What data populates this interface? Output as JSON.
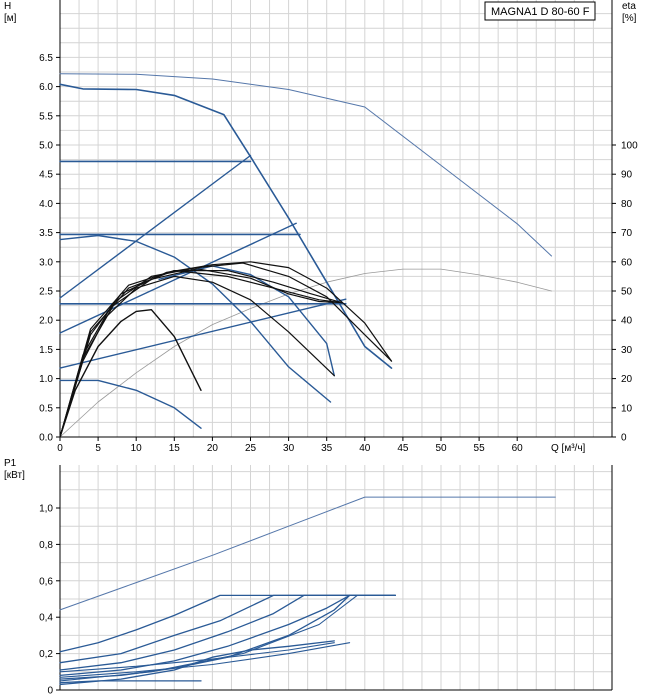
{
  "chart_data": [
    {
      "type": "line",
      "title": "MAGNA1 D 80-60 F",
      "xlabel": "Q [м³/ч]",
      "ylabel_lines": [
        "H",
        "[м]"
      ],
      "y2label_lines": [
        "eta",
        "[%]"
      ],
      "xlim": [
        0,
        70
      ],
      "ylim": [
        0,
        7.5
      ],
      "y2lim": [
        0,
        150
      ],
      "grid": true,
      "x_ticks": [
        0,
        5,
        10,
        15,
        20,
        25,
        30,
        35,
        40,
        45,
        50,
        55,
        60
      ],
      "y_ticks": [
        "0.0",
        "0.5",
        "1.0",
        "1.5",
        "2.0",
        "2.5",
        "3.0",
        "3.5",
        "4.0",
        "4.5",
        "5.0",
        "5.5",
        "6.0",
        "6.5"
      ],
      "y2_ticks": [
        "0",
        "10",
        "20",
        "30",
        "40",
        "50",
        "60",
        "70",
        "80",
        "90",
        "100"
      ],
      "series": [
        {
          "color": "#5577aa",
          "width": 1,
          "points": [
            [
              0,
              6.22
            ],
            [
              10,
              6.21
            ],
            [
              20,
              6.13
            ],
            [
              30,
              5.95
            ],
            [
              40,
              5.65
            ],
            [
              50,
              4.65
            ],
            [
              60,
              3.65
            ],
            [
              64.5,
              3.1
            ]
          ]
        },
        {
          "color": "#999999",
          "width": 0.8,
          "axis": "y2",
          "points": [
            [
              0,
              0
            ],
            [
              5,
              12
            ],
            [
              10,
              22
            ],
            [
              15,
              31
            ],
            [
              20,
              38.5
            ],
            [
              25,
              44
            ],
            [
              30,
              49
            ],
            [
              35,
              53
            ],
            [
              40,
              56
            ],
            [
              45,
              57.5
            ],
            [
              50,
              57.5
            ],
            [
              55,
              55.5
            ],
            [
              60,
              53
            ],
            [
              64.5,
              50
            ]
          ]
        },
        {
          "color": "#2a5a96",
          "width": 1.6,
          "points": [
            [
              0,
              6.04
            ],
            [
              3,
              5.96
            ],
            [
              10,
              5.95
            ],
            [
              15,
              5.85
            ],
            [
              21.5,
              5.52
            ],
            [
              25,
              4.8
            ],
            [
              30,
              3.75
            ],
            [
              35,
              2.65
            ],
            [
              40,
              1.55
            ],
            [
              43.5,
              1.18
            ]
          ]
        },
        {
          "color": "#2a5a96",
          "width": 1.6,
          "points": [
            [
              0,
              4.72
            ],
            [
              25,
              4.72
            ]
          ]
        },
        {
          "color": "#2a5a96",
          "width": 1.6,
          "points": [
            [
              0,
              3.47
            ],
            [
              31.5,
              3.47
            ]
          ]
        },
        {
          "color": "#2a5a96",
          "width": 1.6,
          "points": [
            [
              0,
              2.28
            ],
            [
              37.5,
              2.28
            ]
          ]
        },
        {
          "color": "#2a5a96",
          "width": 1.4,
          "points": [
            [
              0,
              2.38
            ],
            [
              25,
              4.82
            ]
          ]
        },
        {
          "color": "#2a5a96",
          "width": 1.4,
          "points": [
            [
              0,
              1.78
            ],
            [
              31,
              3.66
            ]
          ]
        },
        {
          "color": "#2a5a96",
          "width": 1.4,
          "points": [
            [
              0,
              1.18
            ],
            [
              37.5,
              2.36
            ]
          ]
        },
        {
          "color": "#2a5a96",
          "width": 1.4,
          "points": [
            [
              0,
              3.38
            ],
            [
              5,
              3.45
            ],
            [
              10,
              3.35
            ],
            [
              15,
              3.08
            ],
            [
              20,
              2.62
            ],
            [
              25,
              1.98
            ],
            [
              30,
              1.2
            ],
            [
              35.5,
              0.6
            ]
          ]
        },
        {
          "color": "#2a5a96",
          "width": 1.4,
          "points": [
            [
              0,
              0.97
            ],
            [
              5,
              0.97
            ],
            [
              10,
              0.8
            ],
            [
              15,
              0.5
            ],
            [
              18.5,
              0.15
            ]
          ]
        },
        {
          "color": "#2a5a96",
          "width": 1.4,
          "points": [
            [
              13,
              2.7
            ],
            [
              20,
              2.93
            ],
            [
              25,
              2.78
            ],
            [
              30,
              2.4
            ],
            [
              35,
              1.6
            ],
            [
              36,
              1.05
            ]
          ]
        },
        {
          "color": "#111111",
          "width": 1.4,
          "points": [
            [
              0,
              0
            ],
            [
              2,
              0.8
            ],
            [
              5,
              1.55
            ],
            [
              8,
              1.98
            ],
            [
              10,
              2.15
            ],
            [
              12,
              2.18
            ],
            [
              15,
              1.72
            ],
            [
              18.5,
              0.8
            ]
          ]
        },
        {
          "color": "#111111",
          "width": 1.2,
          "points": [
            [
              0,
              0
            ],
            [
              3,
              1.3
            ],
            [
              6,
              2.05
            ],
            [
              10,
              2.55
            ],
            [
              15,
              2.75
            ],
            [
              20,
              2.65
            ],
            [
              25,
              2.35
            ],
            [
              30,
              1.8
            ],
            [
              36,
              1.05
            ]
          ]
        },
        {
          "color": "#111111",
          "width": 1.2,
          "points": [
            [
              0,
              0
            ],
            [
              3,
              1.35
            ],
            [
              7,
              2.25
            ],
            [
              12,
              2.7
            ],
            [
              18,
              2.88
            ],
            [
              25,
              2.72
            ],
            [
              30,
              2.45
            ],
            [
              34,
              2.32
            ],
            [
              37,
              2.3
            ]
          ]
        },
        {
          "color": "#111111",
          "width": 1.2,
          "points": [
            [
              0,
              0
            ],
            [
              3,
              1.4
            ],
            [
              7,
              2.3
            ],
            [
              12,
              2.75
            ],
            [
              18,
              2.9
            ],
            [
              24,
              2.98
            ],
            [
              30,
              2.75
            ],
            [
              35,
              2.4
            ],
            [
              40,
              1.75
            ],
            [
              43.5,
              1.3
            ]
          ]
        },
        {
          "color": "#111111",
          "width": 1.2,
          "points": [
            [
              0,
              0
            ],
            [
              4,
              1.75
            ],
            [
              8,
              2.45
            ],
            [
              14,
              2.82
            ],
            [
              20,
              2.95
            ],
            [
              25,
              3.0
            ],
            [
              30,
              2.9
            ],
            [
              35,
              2.55
            ],
            [
              40,
              1.95
            ],
            [
              43.5,
              1.3
            ]
          ]
        },
        {
          "color": "#111111",
          "width": 1.2,
          "points": [
            [
              0,
              0
            ],
            [
              4,
              1.8
            ],
            [
              9,
              2.55
            ],
            [
              15,
              2.85
            ],
            [
              22,
              2.85
            ],
            [
              28,
              2.65
            ],
            [
              33,
              2.45
            ],
            [
              37,
              2.3
            ]
          ]
        },
        {
          "color": "#111111",
          "width": 1.2,
          "points": [
            [
              0,
              0
            ],
            [
              4,
              1.85
            ],
            [
              9,
              2.6
            ],
            [
              15,
              2.85
            ],
            [
              22,
              2.75
            ],
            [
              28,
              2.55
            ],
            [
              34,
              2.35
            ],
            [
              37,
              2.3
            ]
          ]
        }
      ]
    },
    {
      "type": "line",
      "xlabel": "",
      "ylabel_lines": [
        "P1",
        "[кВт]"
      ],
      "xlim": [
        0,
        70
      ],
      "ylim": [
        0,
        1.25
      ],
      "grid": true,
      "y_ticks": [
        {
          "v": 0,
          "label": "0"
        },
        {
          "v": 0.2,
          "label": "0,2"
        },
        {
          "v": 0.4,
          "label": "0,4"
        },
        {
          "v": 0.6,
          "label": "0,6"
        },
        {
          "v": 0.8,
          "label": "0,8"
        },
        {
          "v": 1.0,
          "label": "1,0"
        }
      ],
      "series": [
        {
          "color": "#5577aa",
          "width": 1,
          "points": [
            [
              0,
              0.44
            ],
            [
              10,
              0.59
            ],
            [
              20,
              0.74
            ],
            [
              30,
              0.9
            ],
            [
              40,
              1.06
            ],
            [
              65,
              1.06
            ]
          ]
        },
        {
          "color": "#2a5a96",
          "width": 1.3,
          "points": [
            [
              0,
              0.21
            ],
            [
              5,
              0.26
            ],
            [
              10,
              0.33
            ],
            [
              15,
              0.41
            ],
            [
              21,
              0.52
            ],
            [
              44,
              0.52
            ]
          ]
        },
        {
          "color": "#2a5a96",
          "width": 1.3,
          "points": [
            [
              0,
              0.15
            ],
            [
              8,
              0.2
            ],
            [
              15,
              0.3
            ],
            [
              21,
              0.38
            ],
            [
              25,
              0.46
            ],
            [
              28,
              0.52
            ],
            [
              44,
              0.52
            ]
          ]
        },
        {
          "color": "#2a5a96",
          "width": 1.3,
          "points": [
            [
              0,
              0.11
            ],
            [
              8,
              0.15
            ],
            [
              15,
              0.22
            ],
            [
              22,
              0.32
            ],
            [
              28,
              0.42
            ],
            [
              32,
              0.52
            ],
            [
              44,
              0.52
            ]
          ]
        },
        {
          "color": "#2a5a96",
          "width": 1.3,
          "points": [
            [
              0,
              0.08
            ],
            [
              8,
              0.11
            ],
            [
              15,
              0.16
            ],
            [
              22,
              0.24
            ],
            [
              30,
              0.36
            ],
            [
              35,
              0.45
            ],
            [
              38,
              0.52
            ],
            [
              44,
              0.52
            ]
          ]
        },
        {
          "color": "#2a5a96",
          "width": 1.3,
          "points": [
            [
              0,
              0.06
            ],
            [
              8,
              0.08
            ],
            [
              15,
              0.12
            ],
            [
              22,
              0.18
            ],
            [
              30,
              0.3
            ],
            [
              36,
              0.44
            ],
            [
              38,
              0.52
            ]
          ]
        },
        {
          "color": "#2a5a96",
          "width": 1.3,
          "points": [
            [
              0,
              0.03
            ],
            [
              8,
              0.06
            ],
            [
              15,
              0.11
            ],
            [
              20,
              0.18
            ],
            [
              25,
              0.22
            ],
            [
              30,
              0.24
            ],
            [
              36,
              0.27
            ]
          ]
        },
        {
          "color": "#2a5a96",
          "width": 1.3,
          "points": [
            [
              0,
              0.04
            ],
            [
              5,
              0.05
            ],
            [
              10,
              0.05
            ],
            [
              18.5,
              0.05
            ]
          ]
        },
        {
          "color": "#2a5a96",
          "width": 1.1,
          "points": [
            [
              0,
              0.1
            ],
            [
              10,
              0.13
            ],
            [
              20,
              0.17
            ],
            [
              30,
              0.22
            ],
            [
              36,
              0.26
            ]
          ]
        },
        {
          "color": "#2a5a96",
          "width": 1.1,
          "points": [
            [
              0,
              0.07
            ],
            [
              10,
              0.1
            ],
            [
              20,
              0.14
            ],
            [
              30,
              0.2
            ],
            [
              38,
              0.26
            ]
          ]
        },
        {
          "color": "#2a5a96",
          "width": 1.1,
          "points": [
            [
              0,
              0.05
            ],
            [
              12,
              0.1
            ],
            [
              24,
              0.2
            ],
            [
              34,
              0.36
            ],
            [
              39,
              0.52
            ]
          ]
        }
      ]
    }
  ]
}
